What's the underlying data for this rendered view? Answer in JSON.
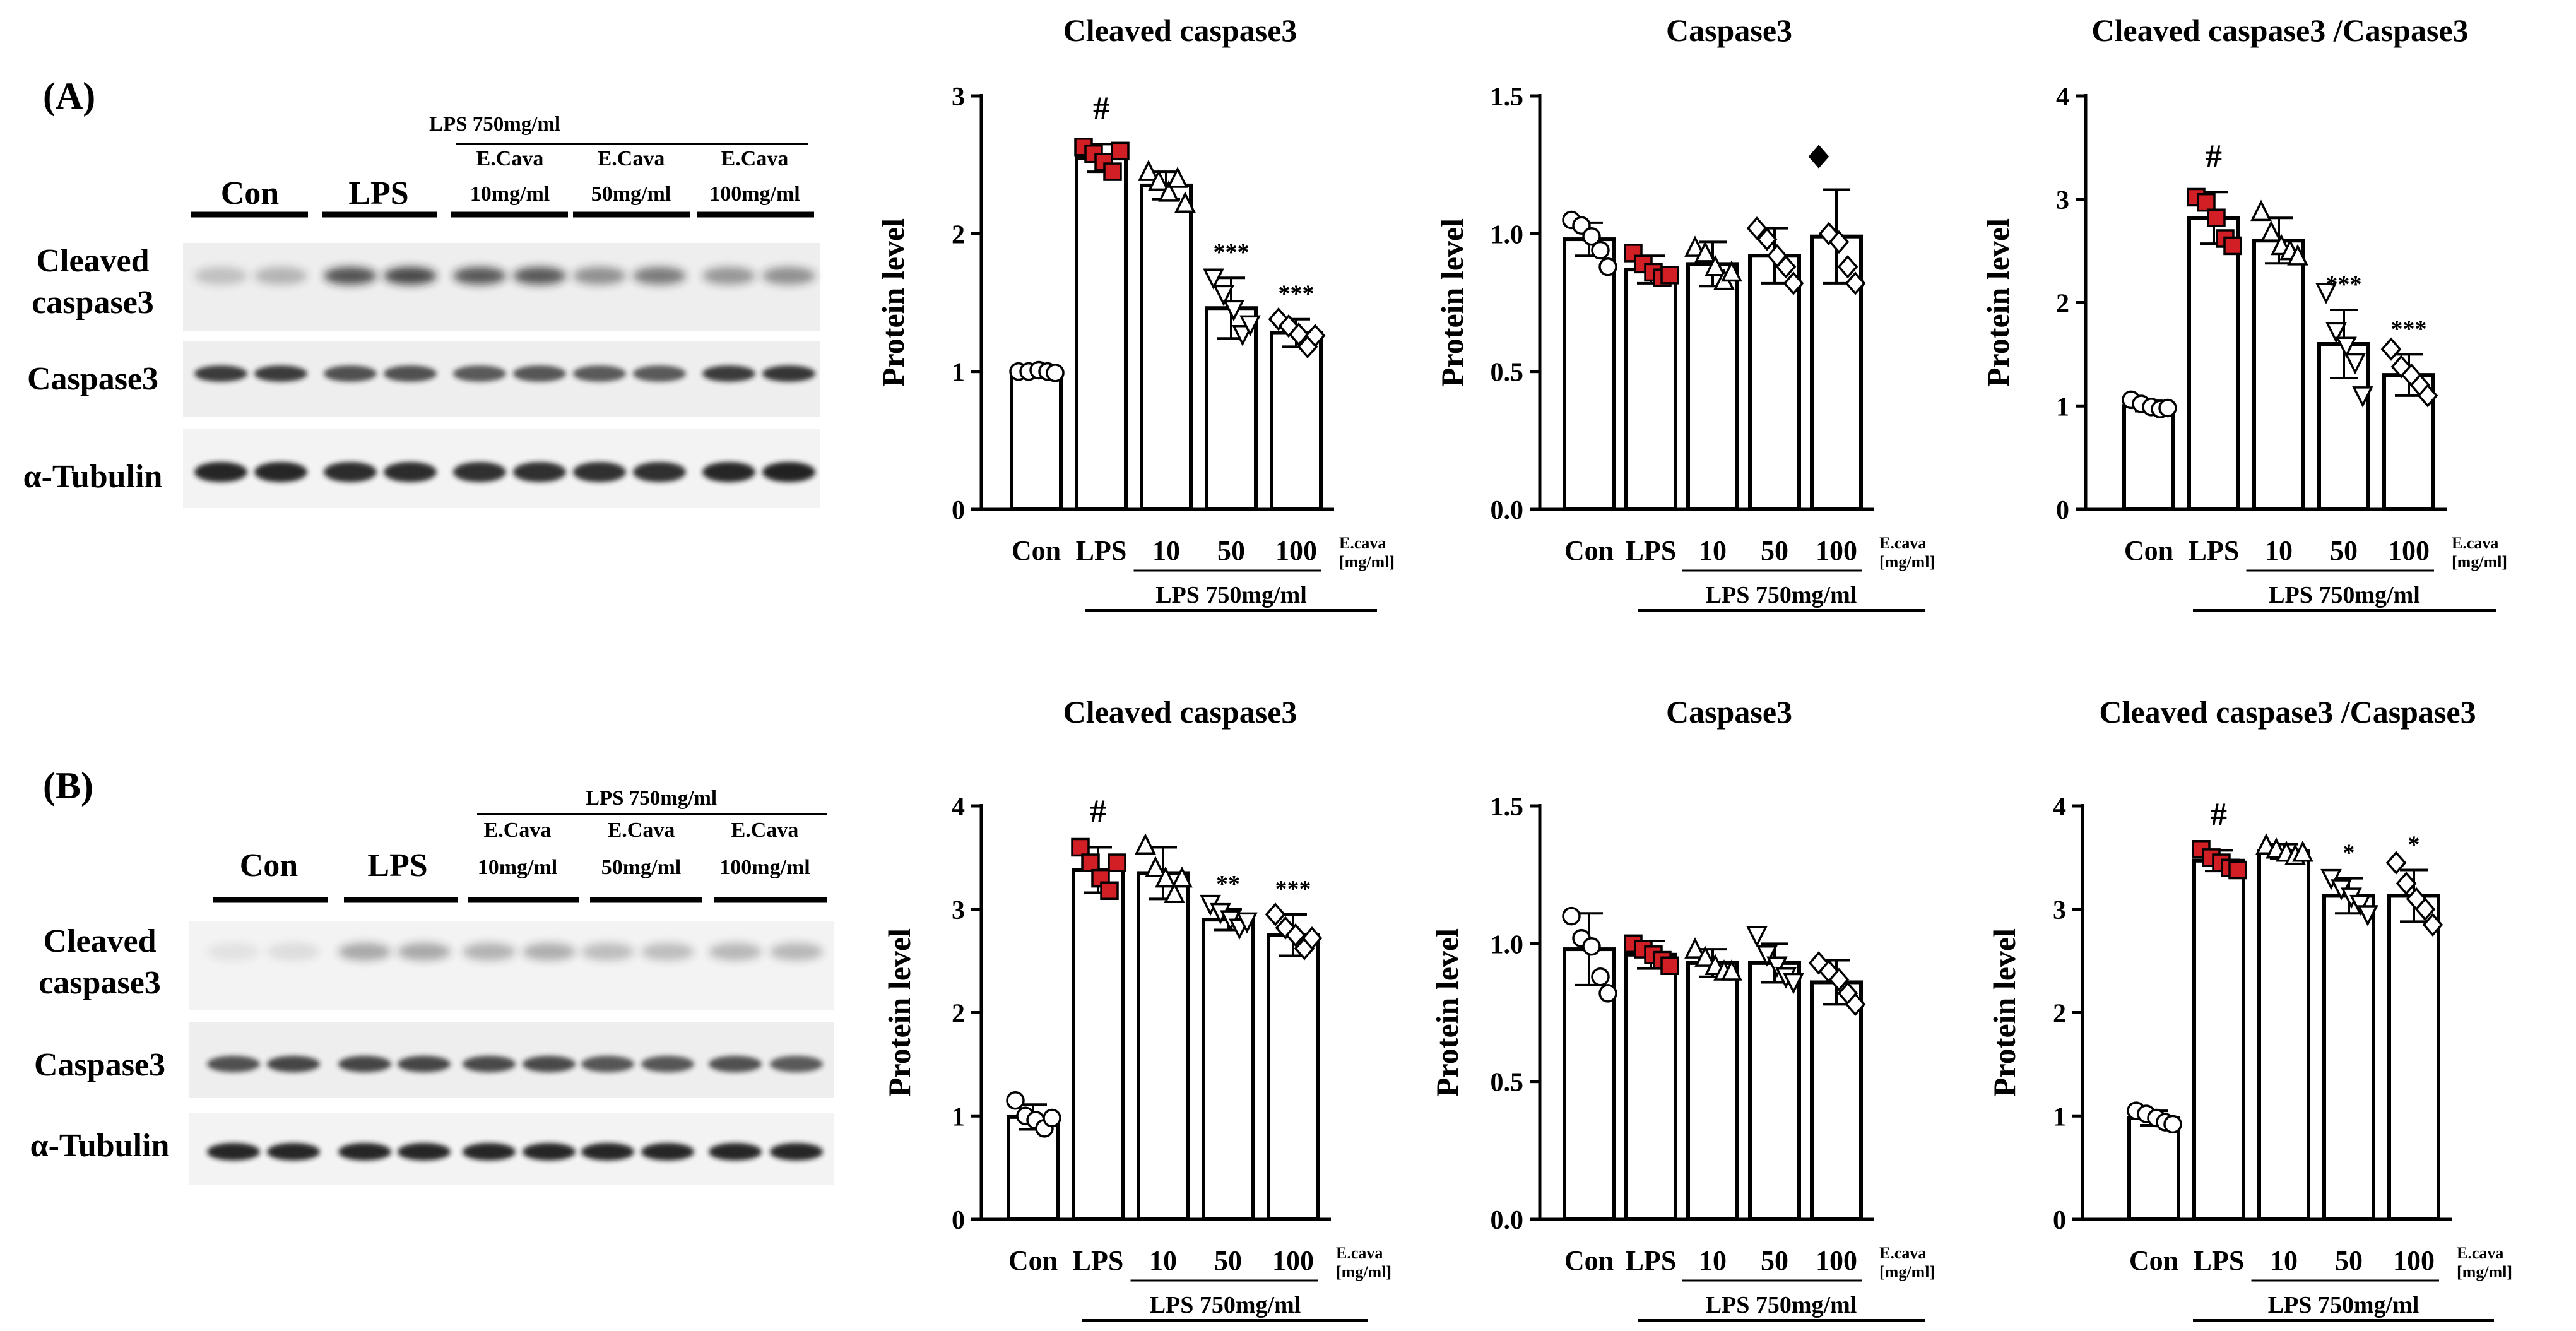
{
  "figure": {
    "panel_labels": [
      "(A)",
      "(B)"
    ],
    "blot_labels": {
      "lanes": [
        "Con",
        "LPS"
      ],
      "treatment_header": "LPS 750mg/ml",
      "dose_line1": "E.Cava",
      "doses": [
        "10mg/ml",
        "50mg/ml",
        "100mg/ml"
      ],
      "rows_a": [
        "Cleaved",
        "caspase3",
        "Caspase3",
        "α-Tubulin"
      ],
      "rows_b": [
        "Cleaved",
        "caspase3",
        "Caspase3",
        "α-Tubulin"
      ]
    },
    "colors": {
      "lps_marker": "#d21f26",
      "ink": "#000000",
      "band": "#1a1a1a",
      "blot_bg": "#f2f2f2"
    }
  },
  "chart_data": [
    {
      "id": "A1",
      "type": "bar",
      "title": "Cleaved caspase3",
      "ylabel": "Protein level",
      "categories": [
        "Con",
        "LPS",
        "10",
        "50",
        "100"
      ],
      "unit_label_1": "E.cava",
      "unit_label_2": "[mg/ml]",
      "bracket_label": "LPS 750mg/ml",
      "ylim": [
        0,
        3
      ],
      "yticks": [
        "0",
        "1",
        "2",
        "3"
      ],
      "ytick_values": [
        0,
        1,
        2,
        3
      ],
      "values": [
        1.0,
        2.55,
        2.35,
        1.46,
        1.28
      ],
      "errors": [
        0.02,
        0.1,
        0.1,
        0.22,
        0.1
      ],
      "markers": [
        "circle",
        "square",
        "triangle",
        "triangle-down",
        "diamond"
      ],
      "points": [
        [
          1.0,
          1.0,
          1.01,
          1.0,
          0.99
        ],
        [
          2.63,
          2.58,
          2.52,
          2.45,
          2.6
        ],
        [
          2.45,
          2.38,
          2.3,
          2.4,
          2.22
        ],
        [
          1.68,
          1.56,
          1.45,
          1.27,
          1.34
        ],
        [
          1.38,
          1.33,
          1.27,
          1.18,
          1.26
        ]
      ],
      "annotations": [
        "",
        "#",
        "",
        "***",
        "***"
      ]
    },
    {
      "id": "A2",
      "type": "bar",
      "title": "Caspase3",
      "ylabel": "Protein level",
      "categories": [
        "Con",
        "LPS",
        "10",
        "50",
        "100"
      ],
      "unit_label_1": "E.cava",
      "unit_label_2": "[mg/ml]",
      "bracket_label": "LPS 750mg/ml",
      "ylim": [
        0,
        1.5
      ],
      "yticks": [
        "0.0",
        "0.5",
        "1.0",
        "1.5"
      ],
      "ytick_values": [
        0,
        0.5,
        1.0,
        1.5
      ],
      "values": [
        0.98,
        0.87,
        0.89,
        0.92,
        0.99
      ],
      "errors": [
        0.06,
        0.05,
        0.08,
        0.1,
        0.17
      ],
      "markers": [
        "circle",
        "square",
        "triangle",
        "diamond",
        "diamond"
      ],
      "points": [
        [
          1.05,
          1.03,
          0.99,
          0.94,
          0.88
        ],
        [
          0.93,
          0.89,
          0.86,
          0.84,
          0.85
        ],
        [
          0.95,
          0.93,
          0.88,
          0.83,
          0.86
        ],
        [
          1.02,
          0.98,
          0.92,
          0.88,
          0.82
        ],
        [
          1.28,
          1.0,
          0.97,
          0.88,
          0.82
        ]
      ],
      "annotations": [
        "",
        "",
        "",
        "",
        ""
      ]
    },
    {
      "id": "A3",
      "type": "bar",
      "title": "Cleaved caspase3 /Caspase3",
      "ylabel": "Protein level",
      "categories": [
        "Con",
        "LPS",
        "10",
        "50",
        "100"
      ],
      "unit_label_1": "E.cava",
      "unit_label_2": "[mg/ml]",
      "bracket_label": "LPS 750mg/ml",
      "ylim": [
        0,
        4
      ],
      "yticks": [
        "0",
        "1",
        "2",
        "3",
        "4"
      ],
      "ytick_values": [
        0,
        1,
        2,
        3,
        4
      ],
      "values": [
        1.0,
        2.82,
        2.6,
        1.6,
        1.3
      ],
      "errors": [
        0.05,
        0.25,
        0.22,
        0.33,
        0.2
      ],
      "markers": [
        "circle",
        "square",
        "triangle",
        "triangle-down",
        "diamond"
      ],
      "points": [
        [
          1.06,
          1.02,
          0.99,
          0.97,
          0.98
        ],
        [
          3.02,
          2.97,
          2.82,
          2.62,
          2.55
        ],
        [
          2.88,
          2.68,
          2.55,
          2.5,
          2.45
        ],
        [
          2.1,
          1.72,
          1.58,
          1.42,
          1.1
        ],
        [
          1.55,
          1.38,
          1.3,
          1.2,
          1.1
        ]
      ],
      "annotations": [
        "",
        "#",
        "",
        "***",
        "***"
      ]
    },
    {
      "id": "B1",
      "type": "bar",
      "title": "Cleaved caspase3",
      "ylabel": "Protein level",
      "categories": [
        "Con",
        "LPS",
        "10",
        "50",
        "100"
      ],
      "unit_label_1": "E.cava",
      "unit_label_2": "[mg/ml]",
      "bracket_label": "LPS 750mg/ml",
      "ylim": [
        0,
        4
      ],
      "yticks": [
        "0",
        "1",
        "2",
        "3",
        "4"
      ],
      "ytick_values": [
        0,
        1,
        2,
        3,
        4
      ],
      "values": [
        0.99,
        3.38,
        3.35,
        2.9,
        2.75
      ],
      "errors": [
        0.12,
        0.22,
        0.25,
        0.1,
        0.2
      ],
      "markers": [
        "circle",
        "square",
        "triangle",
        "triangle-down",
        "diamond"
      ],
      "points": [
        [
          1.15,
          1.0,
          0.96,
          0.88,
          0.98
        ],
        [
          3.6,
          3.45,
          3.3,
          3.18,
          3.45
        ],
        [
          3.62,
          3.4,
          3.3,
          3.15,
          3.3
        ],
        [
          3.05,
          2.97,
          2.9,
          2.82,
          2.88
        ],
        [
          2.95,
          2.82,
          2.75,
          2.62,
          2.72
        ]
      ],
      "annotations": [
        "",
        "#",
        "",
        "**",
        "***"
      ]
    },
    {
      "id": "B2",
      "type": "bar",
      "title": "Caspase3",
      "ylabel": "Protein level",
      "categories": [
        "Con",
        "LPS",
        "10",
        "50",
        "100"
      ],
      "unit_label_1": "E.cava",
      "unit_label_2": "[mg/ml]",
      "bracket_label": "LPS 750mg/ml",
      "ylim": [
        0,
        1.5
      ],
      "yticks": [
        "0.0",
        "0.5",
        "1.0",
        "1.5"
      ],
      "ytick_values": [
        0,
        0.5,
        1.0,
        1.5
      ],
      "values": [
        0.98,
        0.96,
        0.93,
        0.93,
        0.86
      ],
      "errors": [
        0.13,
        0.05,
        0.05,
        0.07,
        0.08
      ],
      "markers": [
        "circle",
        "square",
        "triangle",
        "triangle-down",
        "diamond"
      ],
      "points": [
        [
          1.1,
          1.02,
          0.99,
          0.88,
          0.82
        ],
        [
          1.0,
          0.98,
          0.96,
          0.94,
          0.92
        ],
        [
          0.98,
          0.95,
          0.92,
          0.9,
          0.9
        ],
        [
          1.03,
          0.96,
          0.92,
          0.88,
          0.86
        ],
        [
          0.93,
          0.9,
          0.87,
          0.82,
          0.78
        ]
      ],
      "annotations": [
        "",
        "",
        "",
        "",
        ""
      ]
    },
    {
      "id": "B3",
      "type": "bar",
      "title": "Cleaved caspase3 /Caspase3",
      "ylabel": "Protein level",
      "categories": [
        "Con",
        "LPS",
        "10",
        "50",
        "100"
      ],
      "unit_label_1": "E.cava",
      "unit_label_2": "[mg/ml]",
      "bracket_label": "LPS 750mg/ml",
      "ylim": [
        0,
        4
      ],
      "yticks": [
        "0",
        "1",
        "2",
        "3",
        "4"
      ],
      "ytick_values": [
        0,
        1,
        2,
        3,
        4
      ],
      "values": [
        0.98,
        3.47,
        3.56,
        3.13,
        3.13
      ],
      "errors": [
        0.07,
        0.1,
        0.07,
        0.17,
        0.25
      ],
      "markers": [
        "circle",
        "square",
        "triangle",
        "triangle-down",
        "diamond"
      ],
      "points": [
        [
          1.05,
          1.02,
          0.98,
          0.94,
          0.92
        ],
        [
          3.58,
          3.5,
          3.45,
          3.4,
          3.38
        ],
        [
          3.62,
          3.58,
          3.55,
          3.52,
          3.55
        ],
        [
          3.3,
          3.2,
          3.12,
          3.05,
          2.95
        ],
        [
          3.45,
          3.25,
          3.1,
          3.0,
          2.85
        ]
      ],
      "annotations": [
        "",
        "#",
        "",
        "*",
        "*"
      ]
    }
  ]
}
